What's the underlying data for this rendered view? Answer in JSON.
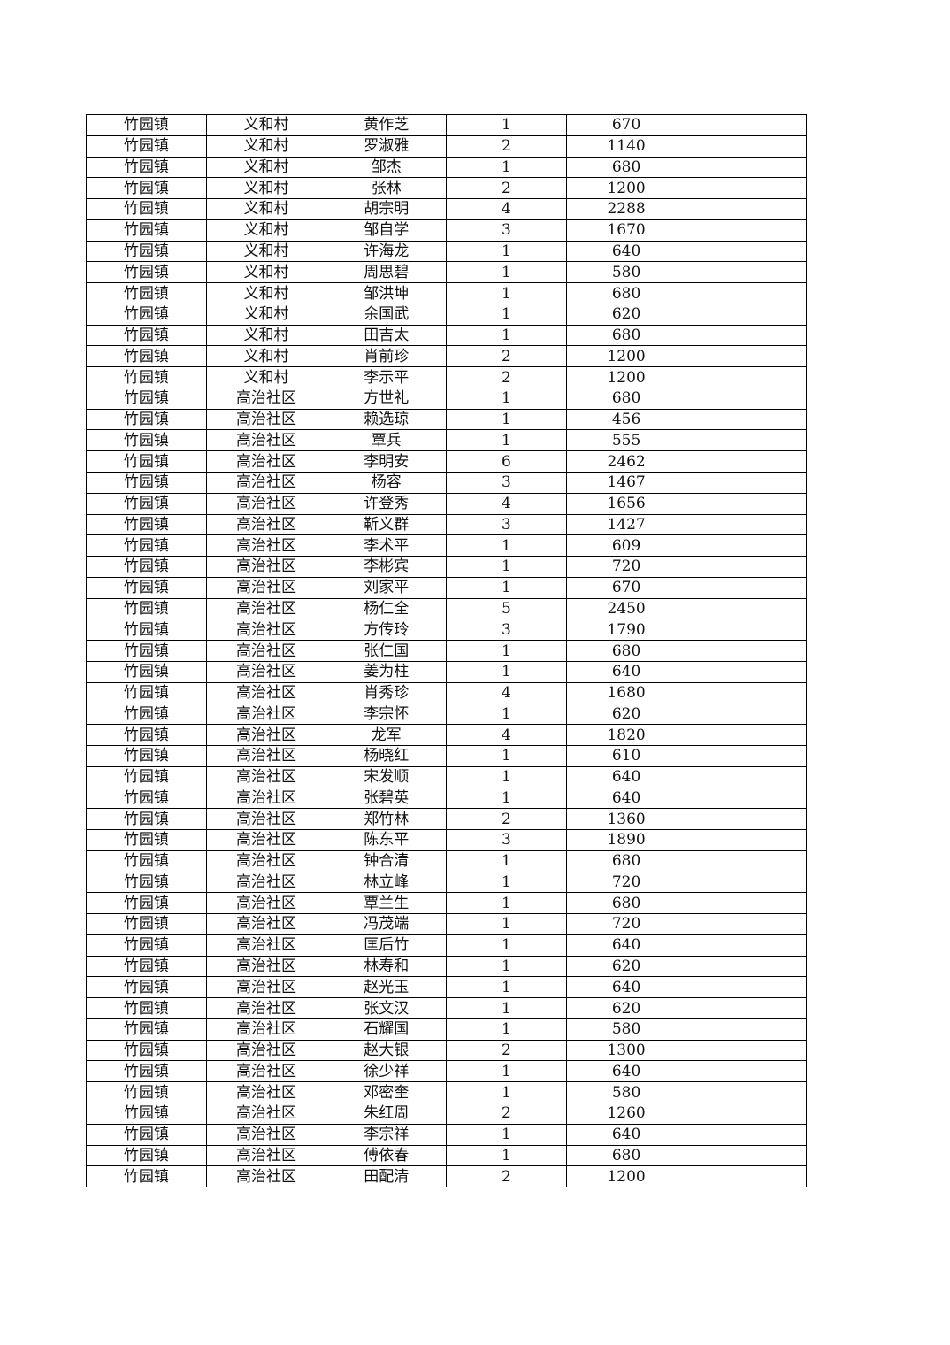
{
  "table": {
    "rows": [
      [
        "竹园镇",
        "义和村",
        "黄作芝",
        "1",
        "670",
        ""
      ],
      [
        "竹园镇",
        "义和村",
        "罗淑雅",
        "2",
        "1140",
        ""
      ],
      [
        "竹园镇",
        "义和村",
        "邹杰",
        "1",
        "680",
        ""
      ],
      [
        "竹园镇",
        "义和村",
        "张林",
        "2",
        "1200",
        ""
      ],
      [
        "竹园镇",
        "义和村",
        "胡宗明",
        "4",
        "2288",
        ""
      ],
      [
        "竹园镇",
        "义和村",
        "邹自学",
        "3",
        "1670",
        ""
      ],
      [
        "竹园镇",
        "义和村",
        "许海龙",
        "1",
        "640",
        ""
      ],
      [
        "竹园镇",
        "义和村",
        "周思碧",
        "1",
        "580",
        ""
      ],
      [
        "竹园镇",
        "义和村",
        "邹洪坤",
        "1",
        "680",
        ""
      ],
      [
        "竹园镇",
        "义和村",
        "余国武",
        "1",
        "620",
        ""
      ],
      [
        "竹园镇",
        "义和村",
        "田吉太",
        "1",
        "680",
        ""
      ],
      [
        "竹园镇",
        "义和村",
        "肖前珍",
        "2",
        "1200",
        ""
      ],
      [
        "竹园镇",
        "义和村",
        "李示平",
        "2",
        "1200",
        ""
      ],
      [
        "竹园镇",
        "高治社区",
        "方世礼",
        "1",
        "680",
        ""
      ],
      [
        "竹园镇",
        "高治社区",
        "赖选琼",
        "1",
        "456",
        ""
      ],
      [
        "竹园镇",
        "高治社区",
        "覃兵",
        "1",
        "555",
        ""
      ],
      [
        "竹园镇",
        "高治社区",
        "李明安",
        "6",
        "2462",
        ""
      ],
      [
        "竹园镇",
        "高治社区",
        "杨容",
        "3",
        "1467",
        ""
      ],
      [
        "竹园镇",
        "高治社区",
        "许登秀",
        "4",
        "1656",
        ""
      ],
      [
        "竹园镇",
        "高治社区",
        "靳义群",
        "3",
        "1427",
        ""
      ],
      [
        "竹园镇",
        "高治社区",
        "李术平",
        "1",
        "609",
        ""
      ],
      [
        "竹园镇",
        "高治社区",
        "李彬宾",
        "1",
        "720",
        ""
      ],
      [
        "竹园镇",
        "高治社区",
        "刘家平",
        "1",
        "670",
        ""
      ],
      [
        "竹园镇",
        "高治社区",
        "杨仁全",
        "5",
        "2450",
        ""
      ],
      [
        "竹园镇",
        "高治社区",
        "方传玲",
        "3",
        "1790",
        ""
      ],
      [
        "竹园镇",
        "高治社区",
        "张仁国",
        "1",
        "680",
        ""
      ],
      [
        "竹园镇",
        "高治社区",
        "姜为柱",
        "1",
        "640",
        ""
      ],
      [
        "竹园镇",
        "高治社区",
        "肖秀珍",
        "4",
        "1680",
        ""
      ],
      [
        "竹园镇",
        "高治社区",
        "李宗怀",
        "1",
        "620",
        ""
      ],
      [
        "竹园镇",
        "高治社区",
        "龙军",
        "4",
        "1820",
        ""
      ],
      [
        "竹园镇",
        "高治社区",
        "杨晓红",
        "1",
        "610",
        ""
      ],
      [
        "竹园镇",
        "高治社区",
        "宋发顺",
        "1",
        "640",
        ""
      ],
      [
        "竹园镇",
        "高治社区",
        "张碧英",
        "1",
        "640",
        ""
      ],
      [
        "竹园镇",
        "高治社区",
        "郑竹林",
        "2",
        "1360",
        ""
      ],
      [
        "竹园镇",
        "高治社区",
        "陈东平",
        "3",
        "1890",
        ""
      ],
      [
        "竹园镇",
        "高治社区",
        "钟合清",
        "1",
        "680",
        ""
      ],
      [
        "竹园镇",
        "高治社区",
        "林立峰",
        "1",
        "720",
        ""
      ],
      [
        "竹园镇",
        "高治社区",
        "覃兰生",
        "1",
        "680",
        ""
      ],
      [
        "竹园镇",
        "高治社区",
        "冯茂端",
        "1",
        "720",
        ""
      ],
      [
        "竹园镇",
        "高治社区",
        "匡后竹",
        "1",
        "640",
        ""
      ],
      [
        "竹园镇",
        "高治社区",
        "林寿和",
        "1",
        "620",
        ""
      ],
      [
        "竹园镇",
        "高治社区",
        "赵光玉",
        "1",
        "640",
        ""
      ],
      [
        "竹园镇",
        "高治社区",
        "张文汉",
        "1",
        "620",
        ""
      ],
      [
        "竹园镇",
        "高治社区",
        "石耀国",
        "1",
        "580",
        ""
      ],
      [
        "竹园镇",
        "高治社区",
        "赵大银",
        "2",
        "1300",
        ""
      ],
      [
        "竹园镇",
        "高治社区",
        "徐少祥",
        "1",
        "640",
        ""
      ],
      [
        "竹园镇",
        "高治社区",
        "邓密奎",
        "1",
        "580",
        ""
      ],
      [
        "竹园镇",
        "高治社区",
        "朱红周",
        "2",
        "1260",
        ""
      ],
      [
        "竹园镇",
        "高治社区",
        "李宗祥",
        "1",
        "640",
        ""
      ],
      [
        "竹园镇",
        "高治社区",
        "傅依春",
        "1",
        "680",
        ""
      ],
      [
        "竹园镇",
        "高治社区",
        "田配清",
        "2",
        "1200",
        ""
      ]
    ]
  }
}
